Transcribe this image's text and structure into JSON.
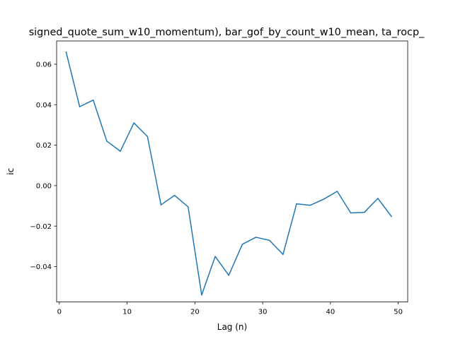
{
  "chart_data": {
    "type": "line",
    "title": "signed_quote_sum_w10_momentum), bar_gof_by_count_w10_mean, ta_rocp_",
    "xlabel": "Lag (n)",
    "ylabel": "ic",
    "xlim": [
      -0.4,
      51.4
    ],
    "ylim": [
      -0.0575,
      0.0715
    ],
    "x_ticks": [
      0,
      10,
      20,
      30,
      40,
      50
    ],
    "x_tick_labels": [
      "0",
      "10",
      "20",
      "30",
      "40",
      "50"
    ],
    "y_ticks": [
      -0.04,
      -0.02,
      0.0,
      0.02,
      0.04,
      0.06
    ],
    "y_tick_labels": [
      "−0.04",
      "−0.02",
      "0.00",
      "0.02",
      "0.04",
      "0.06"
    ],
    "grid": false,
    "series": [
      {
        "color": "#1f77b4",
        "x": [
          1,
          3,
          5,
          7,
          9,
          11,
          13,
          15,
          17,
          19,
          21,
          23,
          25,
          27,
          29,
          31,
          33,
          35,
          37,
          39,
          41,
          43,
          45,
          47,
          49
        ],
        "y": [
          0.066,
          0.039,
          0.0423,
          0.022,
          0.017,
          0.031,
          0.0243,
          -0.0095,
          -0.0048,
          -0.0105,
          -0.054,
          -0.035,
          -0.0443,
          -0.029,
          -0.0255,
          -0.027,
          -0.034,
          -0.009,
          -0.0097,
          -0.0067,
          -0.0028,
          -0.0135,
          -0.0132,
          -0.0063,
          -0.0152
        ]
      }
    ]
  }
}
